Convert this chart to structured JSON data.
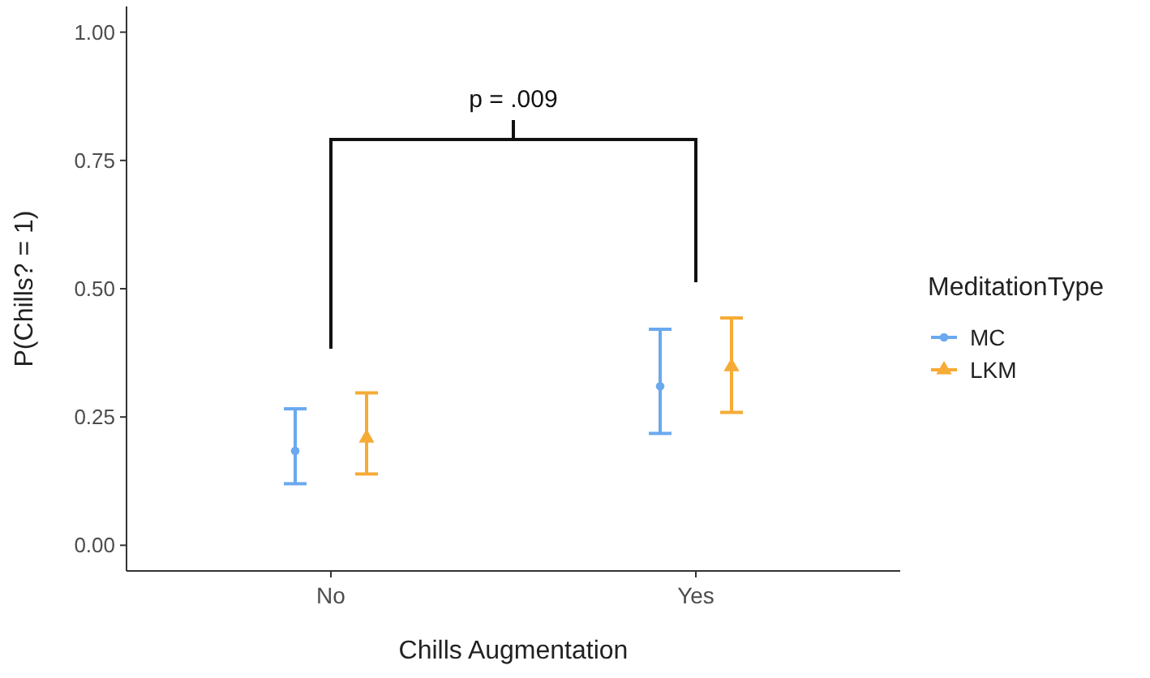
{
  "chart_data": {
    "type": "scatter",
    "xlabel": "Chills Augmentation",
    "ylabel": "P(Chills? = 1)",
    "legend_title": "MeditationType",
    "categories": [
      "No",
      "Yes"
    ],
    "series": [
      {
        "name": "MC",
        "color": "#6aa9ef",
        "marker": "circle",
        "values": [
          0.184,
          0.31
        ],
        "errors": [
          [
            0.12,
            0.266
          ],
          [
            0.218,
            0.421
          ]
        ]
      },
      {
        "name": "LKM",
        "color": "#f5ab35",
        "marker": "triangle",
        "values": [
          0.209,
          0.348
        ],
        "errors": [
          [
            0.139,
            0.297
          ],
          [
            0.259,
            0.443
          ]
        ]
      }
    ],
    "ylim": [
      -0.05,
      1.05
    ],
    "yticks": [
      {
        "value": 0,
        "label": "0.00"
      },
      {
        "value": 0.25,
        "label": "0.25"
      },
      {
        "value": 0.5,
        "label": "0.50"
      },
      {
        "value": 0.75,
        "label": "0.75"
      },
      {
        "value": 1,
        "label": "1.00"
      }
    ],
    "grid": false,
    "legend": "right",
    "annotations": [
      "p = .009"
    ]
  }
}
